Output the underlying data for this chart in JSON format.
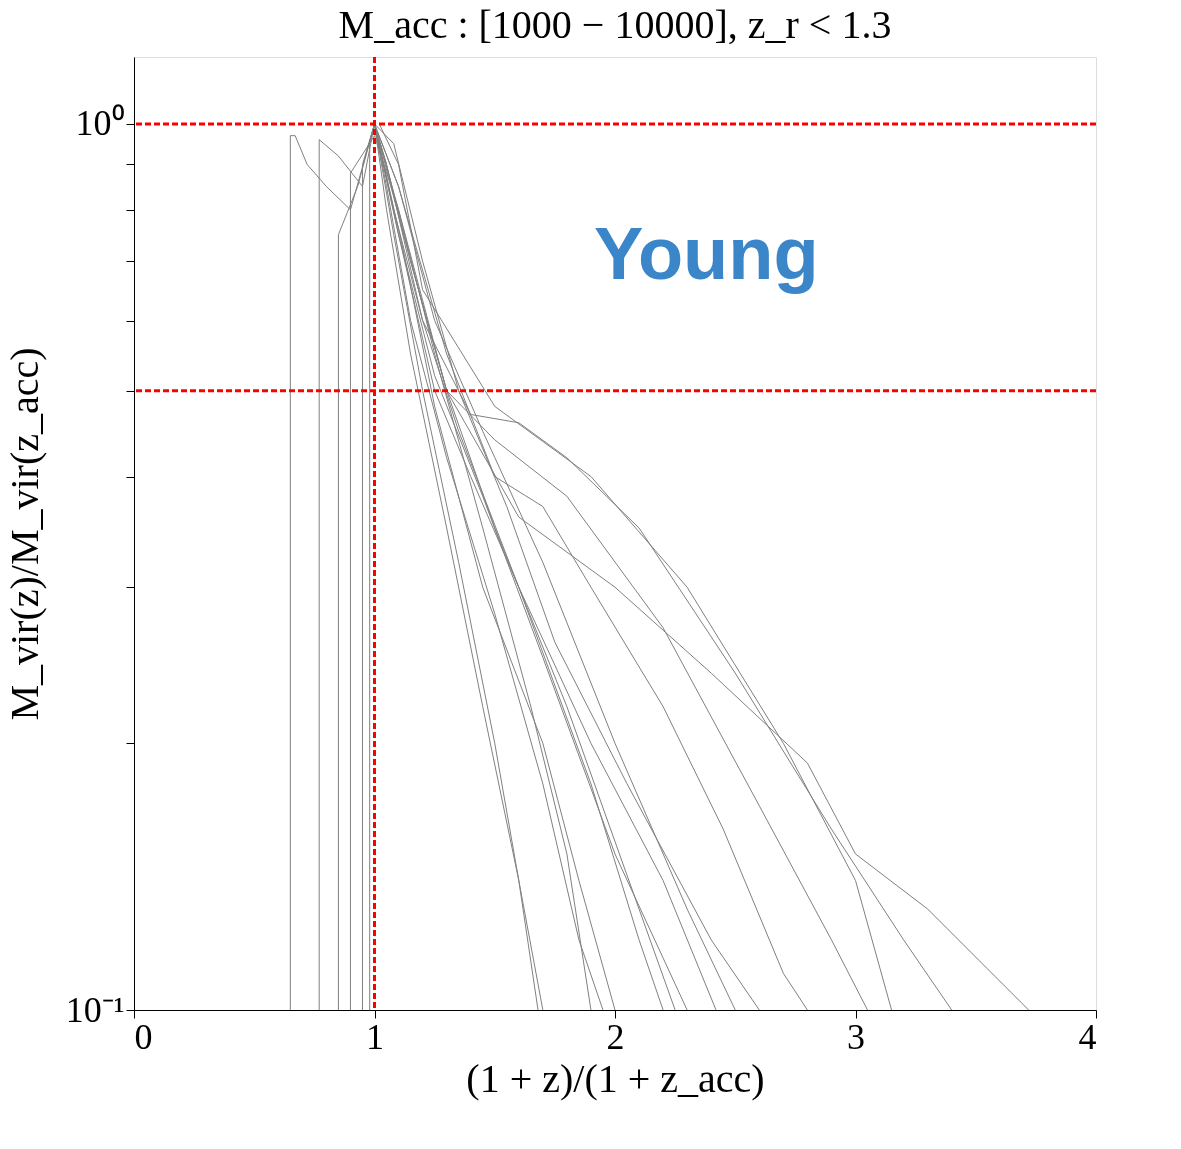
{
  "chart_data": {
    "type": "line",
    "title": "M_acc : [1000 − 10000], z_r < 1.3",
    "xlabel": "(1 + z)/(1 + z_acc)",
    "ylabel": "M_vir(z)/M_vir(z_acc)",
    "annotations": [
      "Young"
    ],
    "xlim": [
      0,
      4
    ],
    "xticks": [
      0,
      1,
      2,
      3,
      4
    ],
    "ylim": [
      0.1,
      1.19
    ],
    "log": "y",
    "yticks": [
      {
        "value": 0.1,
        "label": "10⁻¹"
      },
      {
        "value": 0.2,
        "label": null
      },
      {
        "value": 0.3,
        "label": null
      },
      {
        "value": 0.4,
        "label": null
      },
      {
        "value": 0.5,
        "label": null
      },
      {
        "value": 0.6,
        "label": null
      },
      {
        "value": 0.7,
        "label": null
      },
      {
        "value": 0.8,
        "label": null
      },
      {
        "value": 0.9,
        "label": null
      },
      {
        "value": 1,
        "label": "10⁰"
      }
    ],
    "grid": false,
    "legend": false,
    "series": [
      {
        "color": "#808080",
        "x": [
          0.65,
          0.65,
          0.67,
          0.72,
          0.8,
          0.9,
          1.0,
          1.05,
          1.15,
          1.3,
          1.5,
          1.8,
          2.1,
          2.25
        ],
        "values": [
          0.1,
          0.97,
          0.97,
          0.9,
          0.85,
          0.8,
          1.0,
          0.9,
          0.7,
          0.5,
          0.35,
          0.22,
          0.13,
          0.1
        ]
      },
      {
        "color": "#808080",
        "x": [
          0.77,
          0.77,
          0.85,
          0.95,
          1.0,
          1.1,
          1.25,
          1.45,
          1.7,
          2.0,
          2.3
        ],
        "values": [
          0.1,
          0.96,
          0.92,
          0.85,
          1.0,
          0.75,
          0.52,
          0.38,
          0.25,
          0.15,
          0.1
        ]
      },
      {
        "color": "#808080",
        "x": [
          0.85,
          0.85,
          0.93,
          1.0,
          1.08,
          1.2,
          1.35,
          1.6,
          1.9,
          2.1,
          2.2
        ],
        "values": [
          0.1,
          0.75,
          0.85,
          1.0,
          0.8,
          0.6,
          0.45,
          0.3,
          0.18,
          0.12,
          0.1
        ]
      },
      {
        "color": "#808080",
        "x": [
          0.95,
          0.95,
          1.0,
          1.05,
          1.15,
          1.3,
          1.5,
          1.7,
          1.85,
          1.95
        ],
        "values": [
          0.1,
          0.9,
          1.0,
          0.85,
          0.6,
          0.42,
          0.28,
          0.18,
          0.12,
          0.1
        ]
      },
      {
        "color": "#808080",
        "x": [
          1.0,
          1.05,
          1.15,
          1.3,
          1.45,
          1.6,
          1.7
        ],
        "values": [
          1.0,
          0.8,
          0.55,
          0.35,
          0.22,
          0.14,
          0.1
        ]
      },
      {
        "color": "#808080",
        "x": [
          1.0,
          1.1,
          1.25,
          1.45,
          1.7,
          2.0,
          2.3,
          2.5
        ],
        "values": [
          1.0,
          0.85,
          0.6,
          0.45,
          0.32,
          0.2,
          0.13,
          0.1
        ]
      },
      {
        "color": "#808080",
        "x": [
          1.0,
          1.1,
          1.3,
          1.5,
          1.8,
          2.2,
          2.6,
          2.9,
          3.05
        ],
        "values": [
          1.0,
          0.8,
          0.5,
          0.44,
          0.38,
          0.27,
          0.17,
          0.12,
          0.1
        ]
      },
      {
        "color": "#808080",
        "x": [
          1.0,
          1.05,
          1.2,
          1.4,
          1.6,
          1.8,
          2.1,
          2.5,
          2.9,
          3.2,
          3.4
        ],
        "values": [
          1.0,
          0.9,
          0.6,
          0.47,
          0.46,
          0.42,
          0.35,
          0.24,
          0.16,
          0.12,
          0.1
        ]
      },
      {
        "color": "#808080",
        "x": [
          1.0,
          1.15,
          1.3,
          1.6,
          2.0,
          2.4,
          2.8,
          3.0,
          3.3,
          3.72
        ],
        "values": [
          1.0,
          0.7,
          0.5,
          0.36,
          0.3,
          0.24,
          0.19,
          0.15,
          0.13,
          0.1
        ]
      },
      {
        "color": "#808080",
        "x": [
          1.0,
          1.1,
          1.25,
          1.4,
          1.6,
          1.9,
          2.2,
          2.42
        ],
        "values": [
          1.0,
          0.75,
          0.5,
          0.4,
          0.3,
          0.2,
          0.14,
          0.1
        ]
      },
      {
        "color": "#808080",
        "x": [
          1.0,
          1.08,
          1.2,
          1.35,
          1.55,
          1.75,
          2.05,
          2.4,
          2.6
        ],
        "values": [
          1.0,
          0.95,
          0.7,
          0.5,
          0.37,
          0.26,
          0.18,
          0.12,
          0.1
        ]
      },
      {
        "color": "#808080",
        "x": [
          1.02,
          1.1,
          1.2,
          1.5,
          1.9,
          2.3,
          2.7,
          3.0,
          3.15
        ],
        "values": [
          1.0,
          0.9,
          0.65,
          0.48,
          0.4,
          0.3,
          0.2,
          0.14,
          0.1
        ]
      },
      {
        "color": "#808080",
        "x": [
          0.98,
          0.98,
          1.0,
          1.08,
          1.2,
          1.35,
          1.5,
          1.6,
          1.68
        ],
        "values": [
          0.1,
          0.95,
          1.0,
          0.75,
          0.5,
          0.32,
          0.2,
          0.14,
          0.1
        ]
      },
      {
        "color": "#808080",
        "x": [
          0.9,
          0.9,
          1.0,
          1.1,
          1.25,
          1.45,
          1.65,
          1.8,
          1.9
        ],
        "values": [
          0.1,
          0.88,
          0.97,
          0.8,
          0.55,
          0.35,
          0.22,
          0.15,
          0.1
        ]
      },
      {
        "color": "#808080",
        "x": [
          1.0,
          1.1,
          1.3,
          1.5,
          1.7,
          1.9,
          2.2,
          2.45,
          2.7,
          2.8
        ],
        "values": [
          1.0,
          0.85,
          0.55,
          0.4,
          0.37,
          0.3,
          0.22,
          0.16,
          0.11,
          0.1
        ]
      },
      {
        "color": "#808080",
        "x": [
          1.0,
          1.12,
          1.25,
          1.45,
          1.7,
          1.85,
          2.0
        ],
        "values": [
          1.0,
          0.72,
          0.48,
          0.3,
          0.2,
          0.14,
          0.1
        ]
      }
    ],
    "ref_lines": [
      {
        "axis": "x",
        "value": 1,
        "color": "#ff0000",
        "line_style": "dashed"
      },
      {
        "axis": "y",
        "value": 1,
        "color": "#ff0000",
        "line_style": "dashed"
      },
      {
        "axis": "y",
        "value": 0.5,
        "color": "#ff0000",
        "line_style": "dashed"
      }
    ]
  }
}
